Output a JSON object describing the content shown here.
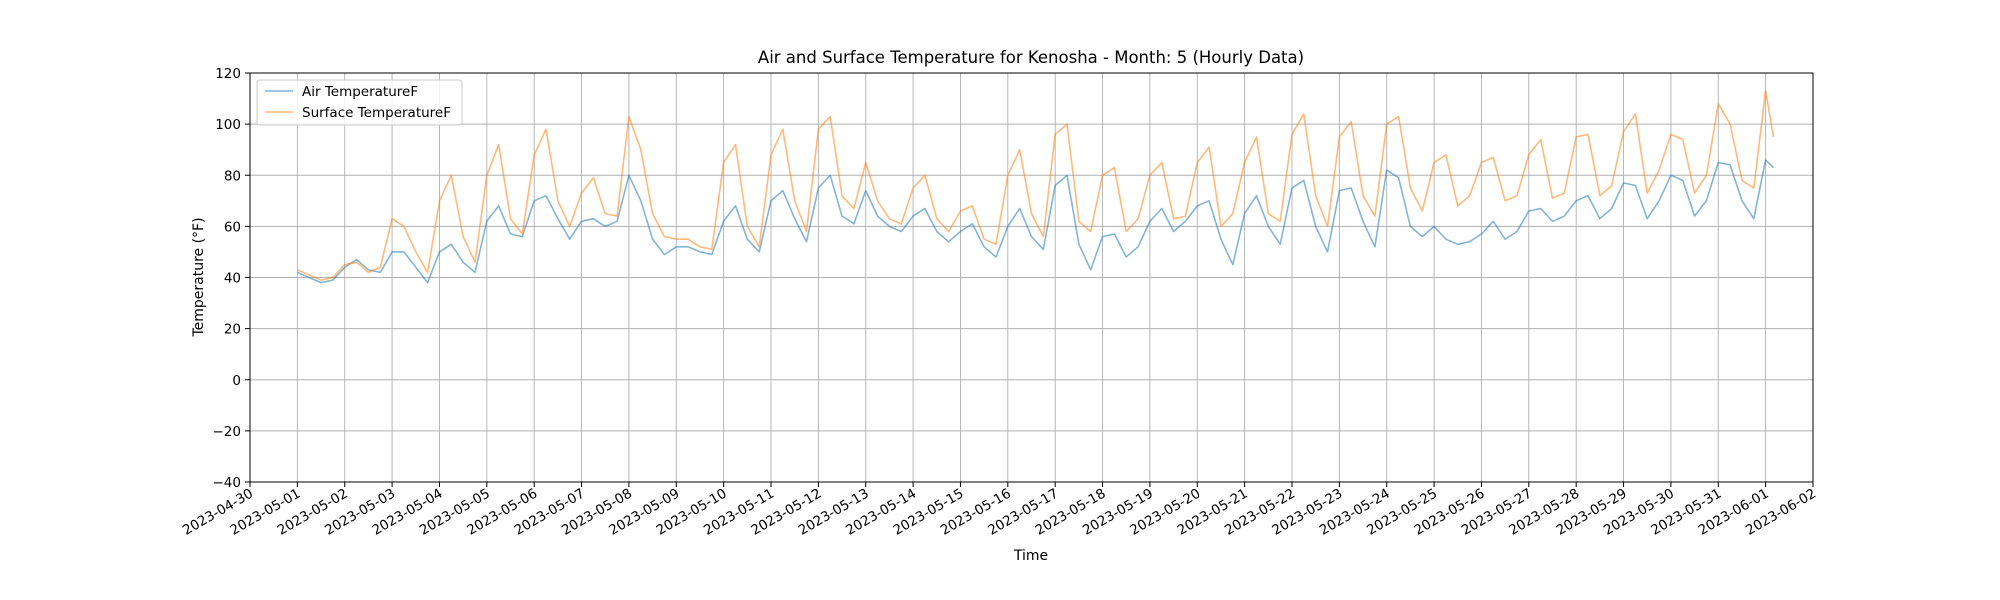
{
  "chart_data": {
    "type": "line",
    "title": "Air and Surface Temperature for Kenosha - Month: 5 (Hourly Data)",
    "xlabel": "Time",
    "ylabel": "Temperature (°F)",
    "xlim": [
      "2023-04-30",
      "2023-06-02"
    ],
    "ylim": [
      -40,
      120
    ],
    "yticks": [
      -40,
      -20,
      0,
      20,
      40,
      60,
      80,
      100,
      120
    ],
    "xticks": [
      "2023-04-30",
      "2023-05-01",
      "2023-05-02",
      "2023-05-03",
      "2023-05-04",
      "2023-05-05",
      "2023-05-06",
      "2023-05-07",
      "2023-05-08",
      "2023-05-09",
      "2023-05-10",
      "2023-05-11",
      "2023-05-12",
      "2023-05-13",
      "2023-05-14",
      "2023-05-15",
      "2023-05-16",
      "2023-05-17",
      "2023-05-18",
      "2023-05-19",
      "2023-05-20",
      "2023-05-21",
      "2023-05-22",
      "2023-05-23",
      "2023-05-24",
      "2023-05-25",
      "2023-05-26",
      "2023-05-27",
      "2023-05-28",
      "2023-05-29",
      "2023-05-30",
      "2023-05-31",
      "2023-06-01",
      "2023-06-02"
    ],
    "grid": true,
    "legend_position": "top-left",
    "series": [
      {
        "name": "Air TemperatureF",
        "color": "#1f77b4",
        "points": [
          [
            "2023-05-01 00:00",
            42
          ],
          [
            "2023-05-01 06:00",
            40
          ],
          [
            "2023-05-01 12:00",
            38
          ],
          [
            "2023-05-01 18:00",
            39
          ],
          [
            "2023-05-02 00:00",
            44
          ],
          [
            "2023-05-02 06:00",
            47
          ],
          [
            "2023-05-02 12:00",
            43
          ],
          [
            "2023-05-02 18:00",
            42
          ],
          [
            "2023-05-03 00:00",
            50
          ],
          [
            "2023-05-03 06:00",
            50
          ],
          [
            "2023-05-03 12:00",
            44
          ],
          [
            "2023-05-03 18:00",
            38
          ],
          [
            "2023-05-04 00:00",
            50
          ],
          [
            "2023-05-04 06:00",
            53
          ],
          [
            "2023-05-04 12:00",
            46
          ],
          [
            "2023-05-04 18:00",
            42
          ],
          [
            "2023-05-05 00:00",
            62
          ],
          [
            "2023-05-05 06:00",
            68
          ],
          [
            "2023-05-05 12:00",
            57
          ],
          [
            "2023-05-05 18:00",
            56
          ],
          [
            "2023-05-06 00:00",
            70
          ],
          [
            "2023-05-06 06:00",
            72
          ],
          [
            "2023-05-06 12:00",
            63
          ],
          [
            "2023-05-06 18:00",
            55
          ],
          [
            "2023-05-07 00:00",
            62
          ],
          [
            "2023-05-07 06:00",
            63
          ],
          [
            "2023-05-07 12:00",
            60
          ],
          [
            "2023-05-07 18:00",
            62
          ],
          [
            "2023-05-08 00:00",
            80
          ],
          [
            "2023-05-08 06:00",
            70
          ],
          [
            "2023-05-08 12:00",
            55
          ],
          [
            "2023-05-08 18:00",
            49
          ],
          [
            "2023-05-09 00:00",
            52
          ],
          [
            "2023-05-09 06:00",
            52
          ],
          [
            "2023-05-09 12:00",
            50
          ],
          [
            "2023-05-09 18:00",
            49
          ],
          [
            "2023-05-10 00:00",
            62
          ],
          [
            "2023-05-10 06:00",
            68
          ],
          [
            "2023-05-10 12:00",
            55
          ],
          [
            "2023-05-10 18:00",
            50
          ],
          [
            "2023-05-11 00:00",
            70
          ],
          [
            "2023-05-11 06:00",
            74
          ],
          [
            "2023-05-11 12:00",
            63
          ],
          [
            "2023-05-11 18:00",
            54
          ],
          [
            "2023-05-12 00:00",
            75
          ],
          [
            "2023-05-12 06:00",
            80
          ],
          [
            "2023-05-12 12:00",
            64
          ],
          [
            "2023-05-12 18:00",
            61
          ],
          [
            "2023-05-13 00:00",
            74
          ],
          [
            "2023-05-13 06:00",
            64
          ],
          [
            "2023-05-13 12:00",
            60
          ],
          [
            "2023-05-13 18:00",
            58
          ],
          [
            "2023-05-14 00:00",
            64
          ],
          [
            "2023-05-14 06:00",
            67
          ],
          [
            "2023-05-14 12:00",
            58
          ],
          [
            "2023-05-14 18:00",
            54
          ],
          [
            "2023-05-15 00:00",
            58
          ],
          [
            "2023-05-15 06:00",
            61
          ],
          [
            "2023-05-15 12:00",
            52
          ],
          [
            "2023-05-15 18:00",
            48
          ],
          [
            "2023-05-16 00:00",
            60
          ],
          [
            "2023-05-16 06:00",
            67
          ],
          [
            "2023-05-16 12:00",
            56
          ],
          [
            "2023-05-16 18:00",
            51
          ],
          [
            "2023-05-17 00:00",
            76
          ],
          [
            "2023-05-17 06:00",
            80
          ],
          [
            "2023-05-17 12:00",
            53
          ],
          [
            "2023-05-17 18:00",
            43
          ],
          [
            "2023-05-18 00:00",
            56
          ],
          [
            "2023-05-18 06:00",
            57
          ],
          [
            "2023-05-18 12:00",
            48
          ],
          [
            "2023-05-18 18:00",
            52
          ],
          [
            "2023-05-19 00:00",
            62
          ],
          [
            "2023-05-19 06:00",
            67
          ],
          [
            "2023-05-19 12:00",
            58
          ],
          [
            "2023-05-19 18:00",
            62
          ],
          [
            "2023-05-20 00:00",
            68
          ],
          [
            "2023-05-20 06:00",
            70
          ],
          [
            "2023-05-20 12:00",
            55
          ],
          [
            "2023-05-20 18:00",
            45
          ],
          [
            "2023-05-21 00:00",
            65
          ],
          [
            "2023-05-21 06:00",
            72
          ],
          [
            "2023-05-21 12:00",
            60
          ],
          [
            "2023-05-21 18:00",
            53
          ],
          [
            "2023-05-22 00:00",
            75
          ],
          [
            "2023-05-22 06:00",
            78
          ],
          [
            "2023-05-22 12:00",
            60
          ],
          [
            "2023-05-22 18:00",
            50
          ],
          [
            "2023-05-23 00:00",
            74
          ],
          [
            "2023-05-23 06:00",
            75
          ],
          [
            "2023-05-23 12:00",
            62
          ],
          [
            "2023-05-23 18:00",
            52
          ],
          [
            "2023-05-24 00:00",
            82
          ],
          [
            "2023-05-24 06:00",
            79
          ],
          [
            "2023-05-24 12:00",
            60
          ],
          [
            "2023-05-24 18:00",
            56
          ],
          [
            "2023-05-25 00:00",
            60
          ],
          [
            "2023-05-25 06:00",
            55
          ],
          [
            "2023-05-25 12:00",
            53
          ],
          [
            "2023-05-25 18:00",
            54
          ],
          [
            "2023-05-26 00:00",
            57
          ],
          [
            "2023-05-26 06:00",
            62
          ],
          [
            "2023-05-26 12:00",
            55
          ],
          [
            "2023-05-26 18:00",
            58
          ],
          [
            "2023-05-27 00:00",
            66
          ],
          [
            "2023-05-27 06:00",
            67
          ],
          [
            "2023-05-27 12:00",
            62
          ],
          [
            "2023-05-27 18:00",
            64
          ],
          [
            "2023-05-28 00:00",
            70
          ],
          [
            "2023-05-28 06:00",
            72
          ],
          [
            "2023-05-28 12:00",
            63
          ],
          [
            "2023-05-28 18:00",
            67
          ],
          [
            "2023-05-29 00:00",
            77
          ],
          [
            "2023-05-29 06:00",
            76
          ],
          [
            "2023-05-29 12:00",
            63
          ],
          [
            "2023-05-29 18:00",
            70
          ],
          [
            "2023-05-30 00:00",
            80
          ],
          [
            "2023-05-30 06:00",
            78
          ],
          [
            "2023-05-30 12:00",
            64
          ],
          [
            "2023-05-30 18:00",
            70
          ],
          [
            "2023-05-31 00:00",
            85
          ],
          [
            "2023-05-31 06:00",
            84
          ],
          [
            "2023-05-31 12:00",
            70
          ],
          [
            "2023-05-31 18:00",
            63
          ],
          [
            "2023-06-01 00:00",
            86
          ],
          [
            "2023-06-01 04:00",
            83
          ]
        ]
      },
      {
        "name": "Surface TemperatureF",
        "color": "#ff7f0e",
        "points": [
          [
            "2023-05-01 00:00",
            43
          ],
          [
            "2023-05-01 06:00",
            41
          ],
          [
            "2023-05-01 12:00",
            39
          ],
          [
            "2023-05-01 18:00",
            40
          ],
          [
            "2023-05-02 00:00",
            45
          ],
          [
            "2023-05-02 06:00",
            46
          ],
          [
            "2023-05-02 12:00",
            42
          ],
          [
            "2023-05-02 18:00",
            44
          ],
          [
            "2023-05-03 00:00",
            63
          ],
          [
            "2023-05-03 06:00",
            60
          ],
          [
            "2023-05-03 12:00",
            50
          ],
          [
            "2023-05-03 18:00",
            42
          ],
          [
            "2023-05-04 00:00",
            70
          ],
          [
            "2023-05-04 06:00",
            80
          ],
          [
            "2023-05-04 12:00",
            56
          ],
          [
            "2023-05-04 18:00",
            46
          ],
          [
            "2023-05-05 00:00",
            80
          ],
          [
            "2023-05-05 06:00",
            92
          ],
          [
            "2023-05-05 12:00",
            63
          ],
          [
            "2023-05-05 18:00",
            57
          ],
          [
            "2023-05-06 00:00",
            88
          ],
          [
            "2023-05-06 06:00",
            98
          ],
          [
            "2023-05-06 12:00",
            70
          ],
          [
            "2023-05-06 18:00",
            60
          ],
          [
            "2023-05-07 00:00",
            73
          ],
          [
            "2023-05-07 06:00",
            79
          ],
          [
            "2023-05-07 12:00",
            65
          ],
          [
            "2023-05-07 18:00",
            64
          ],
          [
            "2023-05-08 00:00",
            103
          ],
          [
            "2023-05-08 06:00",
            90
          ],
          [
            "2023-05-08 12:00",
            65
          ],
          [
            "2023-05-08 18:00",
            56
          ],
          [
            "2023-05-09 00:00",
            55
          ],
          [
            "2023-05-09 06:00",
            55
          ],
          [
            "2023-05-09 12:00",
            52
          ],
          [
            "2023-05-09 18:00",
            51
          ],
          [
            "2023-05-10 00:00",
            85
          ],
          [
            "2023-05-10 06:00",
            92
          ],
          [
            "2023-05-10 12:00",
            60
          ],
          [
            "2023-05-10 18:00",
            52
          ],
          [
            "2023-05-11 00:00",
            88
          ],
          [
            "2023-05-11 06:00",
            98
          ],
          [
            "2023-05-11 12:00",
            70
          ],
          [
            "2023-05-11 18:00",
            58
          ],
          [
            "2023-05-12 00:00",
            98
          ],
          [
            "2023-05-12 06:00",
            103
          ],
          [
            "2023-05-12 12:00",
            72
          ],
          [
            "2023-05-12 18:00",
            67
          ],
          [
            "2023-05-13 00:00",
            85
          ],
          [
            "2023-05-13 06:00",
            70
          ],
          [
            "2023-05-13 12:00",
            63
          ],
          [
            "2023-05-13 18:00",
            61
          ],
          [
            "2023-05-14 00:00",
            75
          ],
          [
            "2023-05-14 06:00",
            80
          ],
          [
            "2023-05-14 12:00",
            63
          ],
          [
            "2023-05-14 18:00",
            58
          ],
          [
            "2023-05-15 00:00",
            66
          ],
          [
            "2023-05-15 06:00",
            68
          ],
          [
            "2023-05-15 12:00",
            55
          ],
          [
            "2023-05-15 18:00",
            53
          ],
          [
            "2023-05-16 00:00",
            80
          ],
          [
            "2023-05-16 06:00",
            90
          ],
          [
            "2023-05-16 12:00",
            65
          ],
          [
            "2023-05-16 18:00",
            56
          ],
          [
            "2023-05-17 00:00",
            96
          ],
          [
            "2023-05-17 06:00",
            100
          ],
          [
            "2023-05-17 12:00",
            62
          ],
          [
            "2023-05-17 18:00",
            58
          ],
          [
            "2023-05-18 00:00",
            80
          ],
          [
            "2023-05-18 06:00",
            83
          ],
          [
            "2023-05-18 12:00",
            58
          ],
          [
            "2023-05-18 18:00",
            63
          ],
          [
            "2023-05-19 00:00",
            80
          ],
          [
            "2023-05-19 06:00",
            85
          ],
          [
            "2023-05-19 12:00",
            63
          ],
          [
            "2023-05-19 18:00",
            64
          ],
          [
            "2023-05-20 00:00",
            85
          ],
          [
            "2023-05-20 06:00",
            91
          ],
          [
            "2023-05-20 12:00",
            60
          ],
          [
            "2023-05-20 18:00",
            65
          ],
          [
            "2023-05-21 00:00",
            85
          ],
          [
            "2023-05-21 06:00",
            95
          ],
          [
            "2023-05-21 12:00",
            65
          ],
          [
            "2023-05-21 18:00",
            62
          ],
          [
            "2023-05-22 00:00",
            96
          ],
          [
            "2023-05-22 06:00",
            104
          ],
          [
            "2023-05-22 12:00",
            72
          ],
          [
            "2023-05-22 18:00",
            60
          ],
          [
            "2023-05-23 00:00",
            95
          ],
          [
            "2023-05-23 06:00",
            101
          ],
          [
            "2023-05-23 12:00",
            72
          ],
          [
            "2023-05-23 18:00",
            64
          ],
          [
            "2023-05-24 00:00",
            100
          ],
          [
            "2023-05-24 06:00",
            103
          ],
          [
            "2023-05-24 12:00",
            75
          ],
          [
            "2023-05-24 18:00",
            66
          ],
          [
            "2023-05-25 00:00",
            85
          ],
          [
            "2023-05-25 06:00",
            88
          ],
          [
            "2023-05-25 12:00",
            68
          ],
          [
            "2023-05-25 18:00",
            72
          ],
          [
            "2023-05-26 00:00",
            85
          ],
          [
            "2023-05-26 06:00",
            87
          ],
          [
            "2023-05-26 12:00",
            70
          ],
          [
            "2023-05-26 18:00",
            72
          ],
          [
            "2023-05-27 00:00",
            88
          ],
          [
            "2023-05-27 06:00",
            94
          ],
          [
            "2023-05-27 12:00",
            71
          ],
          [
            "2023-05-27 18:00",
            73
          ],
          [
            "2023-05-28 00:00",
            95
          ],
          [
            "2023-05-28 06:00",
            96
          ],
          [
            "2023-05-28 12:00",
            72
          ],
          [
            "2023-05-28 18:00",
            76
          ],
          [
            "2023-05-29 00:00",
            97
          ],
          [
            "2023-05-29 06:00",
            104
          ],
          [
            "2023-05-29 12:00",
            73
          ],
          [
            "2023-05-29 18:00",
            82
          ],
          [
            "2023-05-30 00:00",
            96
          ],
          [
            "2023-05-30 06:00",
            94
          ],
          [
            "2023-05-30 12:00",
            73
          ],
          [
            "2023-05-30 18:00",
            80
          ],
          [
            "2023-05-31 00:00",
            108
          ],
          [
            "2023-05-31 06:00",
            100
          ],
          [
            "2023-05-31 12:00",
            78
          ],
          [
            "2023-05-31 18:00",
            75
          ],
          [
            "2023-06-01 00:00",
            113
          ],
          [
            "2023-06-01 04:00",
            95
          ]
        ]
      }
    ]
  }
}
